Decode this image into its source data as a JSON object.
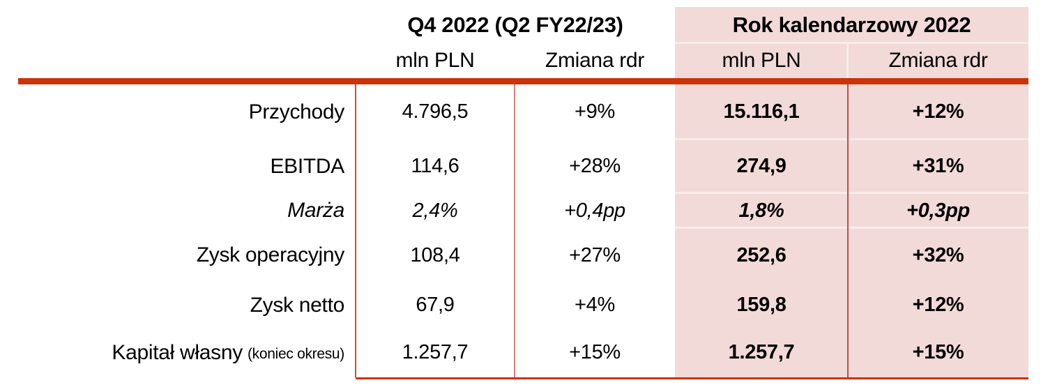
{
  "table": {
    "header_groups": [
      {
        "label": "Q4 2022 (Q2 FY22/23)"
      },
      {
        "label": "Rok kalendarzowy 2022"
      }
    ],
    "subheaders": [
      "mln PLN",
      "Zmiana rdr",
      "mln PLN",
      "Zmiana rdr"
    ],
    "rows": [
      {
        "label": "Przychody",
        "suffix": "",
        "q4_mln": "4.796,5",
        "q4_chg": "+9%",
        "yr_mln": "15.116,1",
        "yr_chg": "+12%",
        "italic": false
      },
      {
        "label": "EBITDA",
        "suffix": "",
        "q4_mln": "114,6",
        "q4_chg": "+28%",
        "yr_mln": "274,9",
        "yr_chg": "+31%",
        "italic": false
      },
      {
        "label": "Marża",
        "suffix": "",
        "q4_mln": "2,4%",
        "q4_chg": "+0,4pp",
        "yr_mln": "1,8%",
        "yr_chg": "+0,3pp",
        "italic": true
      },
      {
        "label": "Zysk operacyjny",
        "suffix": "",
        "q4_mln": "108,4",
        "q4_chg": "+27%",
        "yr_mln": "252,6",
        "yr_chg": "+32%",
        "italic": false
      },
      {
        "label": "Zysk netto",
        "suffix": "",
        "q4_mln": "67,9",
        "q4_chg": "+4%",
        "yr_mln": "159,8",
        "yr_chg": "+12%",
        "italic": false
      },
      {
        "label": "Kapitał własny",
        "suffix": "(koniec okresu)",
        "q4_mln": "1.257,7",
        "q4_chg": "+15%",
        "yr_mln": "1.257,7",
        "yr_chg": "+15%",
        "italic": false
      }
    ],
    "colors": {
      "accent_rule": "#c9340a",
      "pink_background": "#f2dad8",
      "divider_orange": "#c4542a",
      "divider_light_red": "#d57f76",
      "divider_dark_red": "#b4524a",
      "text": "#000000"
    }
  },
  "chart_data": {
    "type": "table",
    "title": "",
    "column_groups": [
      "Q4 2022 (Q2 FY22/23)",
      "Rok kalendarzowy 2022"
    ],
    "columns": [
      "mln PLN",
      "Zmiana rdr",
      "mln PLN",
      "Zmiana rdr"
    ],
    "row_labels": [
      "Przychody",
      "EBITDA",
      "Marża",
      "Zysk operacyjny",
      "Zysk netto",
      "Kapitał własny (koniec okresu)"
    ],
    "series": [
      {
        "name": "Q4 2022 mln PLN",
        "values": [
          4796.5,
          114.6,
          "2,4%",
          108.4,
          67.9,
          1257.7
        ]
      },
      {
        "name": "Q4 2022 Zmiana rdr",
        "values": [
          "+9%",
          "+28%",
          "+0,4pp",
          "+27%",
          "+4%",
          "+15%"
        ]
      },
      {
        "name": "Rok kalendarzowy 2022 mln PLN",
        "values": [
          15116.1,
          274.9,
          "1,8%",
          252.6,
          159.8,
          1257.7
        ]
      },
      {
        "name": "Rok kalendarzowy 2022 Zmiana rdr",
        "values": [
          "+12%",
          "+31%",
          "+0,3pp",
          "+32%",
          "+12%",
          "+15%"
        ]
      }
    ]
  }
}
